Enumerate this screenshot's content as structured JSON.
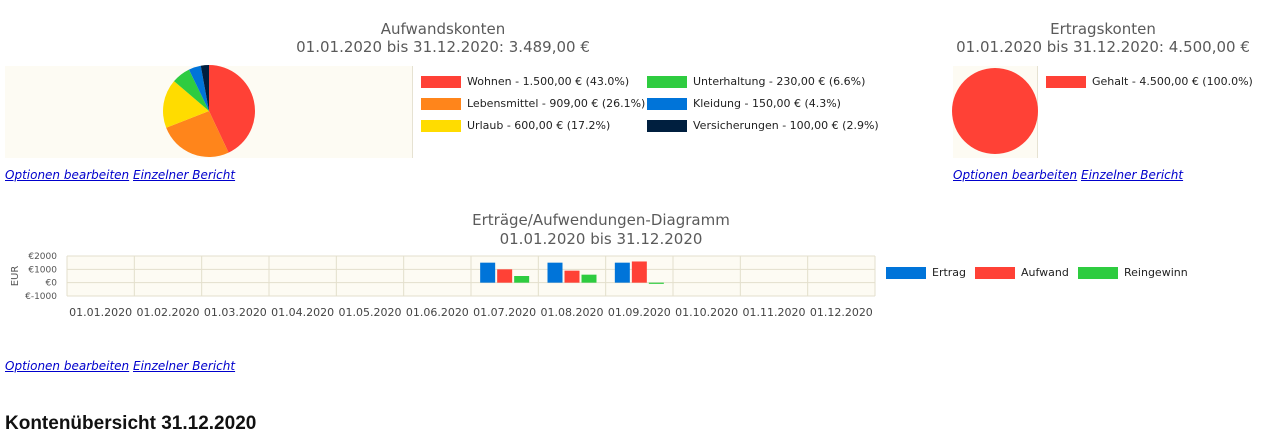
{
  "chart_data": [
    {
      "type": "pie",
      "title": "Aufwandskonten",
      "subtitle": "01.01.2020 bis 31.12.2020: 3.489,00 €",
      "slices": [
        {
          "label": "Wohnen - 1.500,00 € (43.0%)",
          "value": 1500.0,
          "color": "#ff4136"
        },
        {
          "label": "Lebensmittel - 909,00 € (26.1%)",
          "value": 909.0,
          "color": "#ff851b"
        },
        {
          "label": "Urlaub - 600,00 € (17.2%)",
          "value": 600.0,
          "color": "#ffdc00"
        },
        {
          "label": "Unterhaltung - 230,00 € (6.6%)",
          "value": 230.0,
          "color": "#2ecc40"
        },
        {
          "label": "Kleidung - 150,00 € (4.3%)",
          "value": 150.0,
          "color": "#0074d9"
        },
        {
          "label": "Versicherungen - 100,00 € (2.9%)",
          "value": 100.0,
          "color": "#001f3f"
        }
      ],
      "legend_position": "right"
    },
    {
      "type": "pie",
      "title": "Ertragskonten",
      "subtitle": "01.01.2020 bis 31.12.2020: 4.500,00 €",
      "slices": [
        {
          "label": "Gehalt - 4.500,00 € (100.0%)",
          "value": 4500.0,
          "color": "#ff4136"
        }
      ],
      "legend_position": "right"
    },
    {
      "type": "bar",
      "title": "Erträge/Aufwendungen-Diagramm",
      "subtitle": "01.01.2020 bis 31.12.2020",
      "ylabel": "EUR",
      "ylim": [
        -1000,
        2000
      ],
      "yticks": [
        "€2000",
        "€1000",
        "€0",
        "€-1000"
      ],
      "ytick_values": [
        2000,
        1000,
        0,
        -1000
      ],
      "grid": true,
      "legend_position": "right",
      "categories": [
        "01.01.2020",
        "01.02.2020",
        "01.03.2020",
        "01.04.2020",
        "01.05.2020",
        "01.06.2020",
        "01.07.2020",
        "01.08.2020",
        "01.09.2020",
        "01.10.2020",
        "01.11.2020",
        "01.12.2020"
      ],
      "series": [
        {
          "name": "Ertrag",
          "color": "#0074d9",
          "values": [
            0,
            0,
            0,
            0,
            0,
            0,
            1500,
            1500,
            1500,
            0,
            0,
            0
          ]
        },
        {
          "name": "Aufwand",
          "color": "#ff4136",
          "values": [
            0,
            0,
            0,
            0,
            0,
            0,
            1000,
            900,
            1589,
            0,
            0,
            0
          ]
        },
        {
          "name": "Reingewinn",
          "color": "#2ecc40",
          "values": [
            0,
            0,
            0,
            0,
            0,
            0,
            500,
            600,
            -89,
            0,
            0,
            0
          ]
        }
      ]
    }
  ],
  "links": {
    "edit_options": "Optionen bearbeiten",
    "single_report": "Einzelner Bericht"
  },
  "section_heading": "Kontenübersicht 31.12.2020"
}
